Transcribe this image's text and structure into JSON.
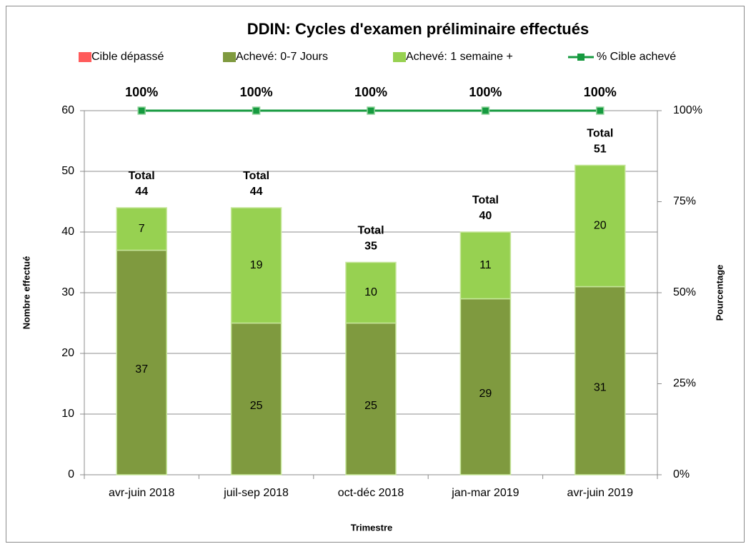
{
  "chart_data": {
    "type": "bar",
    "stacked": true,
    "title": "DDIN:  Cycles d'examen préliminaire effectués",
    "x_label": "Trimestre",
    "y_label": "Nombre effectué",
    "y2_label": "Pourcentage",
    "categories": [
      "avr-juin 2018",
      "juil-sep 2018",
      "oct-déc 2018",
      "jan-mar 2019",
      "avr-juin 2019"
    ],
    "series": [
      {
        "name": "Cible dépassé",
        "color": "#ff5b5b",
        "values": [
          0,
          0,
          0,
          0,
          0
        ]
      },
      {
        "name": "Achevé: 0-7 Jours",
        "color": "#7f9a3f",
        "values": [
          37,
          25,
          25,
          29,
          31
        ]
      },
      {
        "name": "Achevé: 1 semaine +",
        "color": "#97d151",
        "values": [
          7,
          19,
          10,
          11,
          20
        ]
      },
      {
        "name": "% Cible achevé",
        "type": "line",
        "axis": "y2",
        "color": "#169a3f",
        "values": [
          100,
          100,
          100,
          100,
          100
        ],
        "value_labels": [
          "100%",
          "100%",
          "100%",
          "100%",
          "100%"
        ]
      }
    ],
    "total_label": "Total",
    "totals": [
      44,
      44,
      35,
      40,
      51
    ],
    "ylim": [
      0,
      60
    ],
    "yticks": [
      0,
      10,
      20,
      30,
      40,
      50,
      60
    ],
    "y2lim": [
      0,
      100
    ],
    "y2ticks": [
      {
        "value": 0,
        "label": "0%"
      },
      {
        "value": 25,
        "label": "25%"
      },
      {
        "value": 50,
        "label": "50%"
      },
      {
        "value": 75,
        "label": "75%"
      },
      {
        "value": 100,
        "label": "100%"
      }
    ],
    "grid": true,
    "legend": "top"
  }
}
